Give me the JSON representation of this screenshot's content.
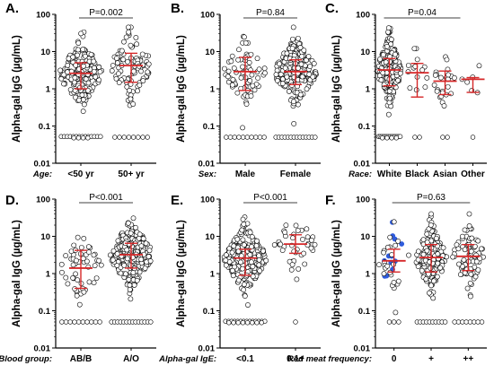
{
  "figure": {
    "mean_bar_color": "#d62728",
    "point_edge_color": "#000000",
    "blue_point_color": "#2f5bdc"
  },
  "chart_data": [
    {
      "letter": "A.",
      "type": "scatter",
      "ylabel": "Alpha-gal IgG (µg/mL)",
      "yscale": "log",
      "ylim": [
        0.01,
        100
      ],
      "yticks": [
        "0.01",
        "0.1",
        "1",
        "10",
        "100"
      ],
      "xtitle": "Age:",
      "categories": [
        "<50 yr",
        "50+ yr"
      ],
      "pvalue": "P=0.002",
      "groups": [
        {
          "name": "<50 yr",
          "n": 220,
          "center": 2.6,
          "q1": 1.0,
          "q3": 5.0,
          "spread": 1.0,
          "n_low": 18,
          "max": 40
        },
        {
          "name": "50+ yr",
          "n": 100,
          "center": 4.2,
          "q1": 1.5,
          "q3": 9.0,
          "spread": 1.05,
          "n_low": 8,
          "max": 45
        }
      ]
    },
    {
      "letter": "B.",
      "type": "scatter",
      "ylabel": "Alpha-gal IgG (µg/mL)",
      "yscale": "log",
      "ylim": [
        0.01,
        100
      ],
      "yticks": [
        "0.01",
        "0.1",
        "1",
        "10",
        "100"
      ],
      "xtitle": "Sex:",
      "categories": [
        "Male",
        "Female"
      ],
      "pvalue": "P=0.84",
      "groups": [
        {
          "name": "Male",
          "n": 80,
          "center": 2.9,
          "q1": 0.9,
          "q3": 7.0,
          "spread": 1.1,
          "n_low": 10,
          "max": 50
        },
        {
          "name": "Female",
          "n": 230,
          "center": 2.9,
          "q1": 1.3,
          "q3": 6.0,
          "spread": 1.0,
          "n_low": 14,
          "max": 45
        }
      ]
    },
    {
      "letter": "C.",
      "type": "scatter",
      "ylabel": "Alpha-gal IgG (µg/mL)",
      "yscale": "log",
      "ylim": [
        0.01,
        100
      ],
      "yticks": [
        "0.01",
        "0.1",
        "1",
        "10",
        "100"
      ],
      "xtitle": "Race:",
      "categories": [
        "White",
        "Black",
        "Asian",
        "Other"
      ],
      "pvalue": "P=0.04",
      "groups": [
        {
          "name": "White",
          "n": 250,
          "center": 3.2,
          "q1": 1.2,
          "q3": 6.5,
          "spread": 1.0,
          "n_low": 18,
          "max": 50
        },
        {
          "name": "Black",
          "n": 16,
          "center": 2.7,
          "q1": 0.6,
          "q3": 4.8,
          "spread": 1.0,
          "n_low": 2,
          "max": 12
        },
        {
          "name": "Asian",
          "n": 26,
          "center": 1.6,
          "q1": 0.7,
          "q3": 3.0,
          "spread": 1.0,
          "n_low": 2,
          "max": 10
        },
        {
          "name": "Other",
          "n": 7,
          "center": 1.8,
          "q1": 0.8,
          "q3": 2.0,
          "spread": 0.7,
          "n_low": 1,
          "max": 5
        }
      ]
    },
    {
      "letter": "D.",
      "type": "scatter",
      "ylabel": "Alpha-gal IgG (µg/mL)",
      "yscale": "log",
      "ylim": [
        0.01,
        100
      ],
      "yticks": [
        "0.01",
        "0.1",
        "1",
        "10",
        "100"
      ],
      "xtitle": "Blood group:",
      "categories": [
        "AB/B",
        "A/O"
      ],
      "pvalue": "P<0.001",
      "groups": [
        {
          "name": "AB/B",
          "n": 60,
          "center": 1.4,
          "q1": 0.4,
          "q3": 4.2,
          "spread": 1.1,
          "n_low": 10,
          "max": 15
        },
        {
          "name": "A/O",
          "n": 240,
          "center": 3.2,
          "q1": 1.4,
          "q3": 6.5,
          "spread": 1.0,
          "n_low": 14,
          "max": 50
        }
      ]
    },
    {
      "letter": "E.",
      "type": "scatter",
      "ylabel": "Alpha-gal IgG (µg/mL)",
      "yscale": "log",
      "ylim": [
        0.01,
        100
      ],
      "yticks": [
        "0.01",
        "0.1",
        "1",
        "10",
        "100"
      ],
      "xtitle": "Alpha-gal IgE:",
      "categories": [
        "<0.1",
        "0.1+"
      ],
      "pvalue": "P<0.001",
      "groups": [
        {
          "name": "<0.1",
          "n": 260,
          "center": 2.6,
          "q1": 0.9,
          "q3": 4.5,
          "spread": 1.0,
          "n_low": 22,
          "max": 45
        },
        {
          "name": "0.1+",
          "n": 40,
          "center": 6.2,
          "q1": 3.5,
          "q3": 11.0,
          "spread": 0.8,
          "n_low": 1,
          "max": 45
        }
      ]
    },
    {
      "letter": "F.",
      "type": "scatter",
      "ylabel": "Alpha-gal IgG (µg/mL)",
      "yscale": "log",
      "ylim": [
        0.01,
        100
      ],
      "yticks": [
        "0.01",
        "0.1",
        "1",
        "10",
        "100"
      ],
      "xtitle": "Red meat frequency:",
      "categories": [
        "0",
        "+",
        "++"
      ],
      "pvalue": "P=0.63",
      "groups": [
        {
          "name": "0",
          "n": 40,
          "center": 2.2,
          "q1": 1.1,
          "q3": 4.5,
          "spread": 1.0,
          "n_low": 3,
          "max": 35,
          "n_blue": 12
        },
        {
          "name": "+",
          "n": 170,
          "center": 2.7,
          "q1": 1.1,
          "q3": 6.0,
          "spread": 1.0,
          "n_low": 10,
          "max": 40
        },
        {
          "name": "++",
          "n": 90,
          "center": 2.9,
          "q1": 1.2,
          "q3": 6.0,
          "spread": 1.0,
          "n_low": 8,
          "max": 40
        }
      ]
    }
  ]
}
